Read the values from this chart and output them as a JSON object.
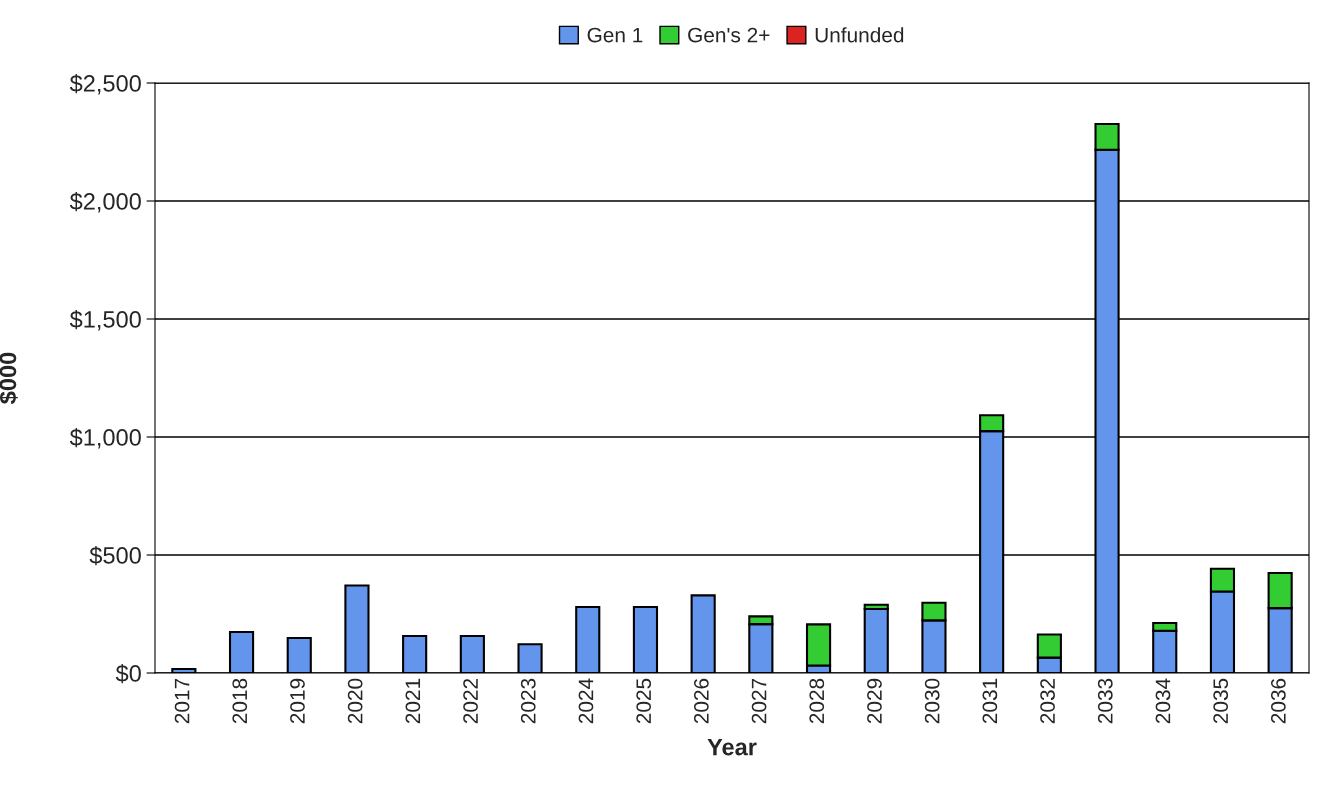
{
  "chart_data": {
    "type": "bar",
    "xlabel": "Year",
    "ylabel": "$000",
    "stacked": true,
    "categories": [
      "2017",
      "2018",
      "2019",
      "2020",
      "2021",
      "2022",
      "2023",
      "2024",
      "2025",
      "2026",
      "2027",
      "2028",
      "2029",
      "2030",
      "2031",
      "2032",
      "2033",
      "2034",
      "2035",
      "2036"
    ],
    "series": [
      {
        "name": "Gen 1",
        "color": "#6495ed",
        "values": [
          17,
          174,
          148,
          371,
          157,
          157,
          122,
          280,
          280,
          329,
          207,
          32,
          271,
          223,
          1025,
          65,
          2217,
          179,
          345,
          275
        ]
      },
      {
        "name": "Gen's 2+",
        "color": "#33cc33",
        "values": [
          null,
          null,
          null,
          null,
          null,
          null,
          null,
          null,
          null,
          null,
          33,
          174,
          18,
          75,
          67,
          98,
          109,
          33,
          97,
          149
        ]
      },
      {
        "name": "Unfunded",
        "color": "#dd2222",
        "values": [
          null,
          null,
          null,
          null,
          null,
          null,
          null,
          null,
          null,
          null,
          null,
          null,
          null,
          null,
          null,
          null,
          null,
          null,
          null,
          null
        ]
      }
    ],
    "ylim": [
      0,
      2500
    ],
    "yticks": [
      {
        "value": 0,
        "label": "$0"
      },
      {
        "value": 500,
        "label": "$500"
      },
      {
        "value": 1000,
        "label": "$1,000"
      },
      {
        "value": 1500,
        "label": "$1,500"
      },
      {
        "value": 2000,
        "label": "$2,000"
      },
      {
        "value": 2500,
        "label": "$2,500"
      }
    ],
    "grid": "y",
    "legend": "top"
  }
}
